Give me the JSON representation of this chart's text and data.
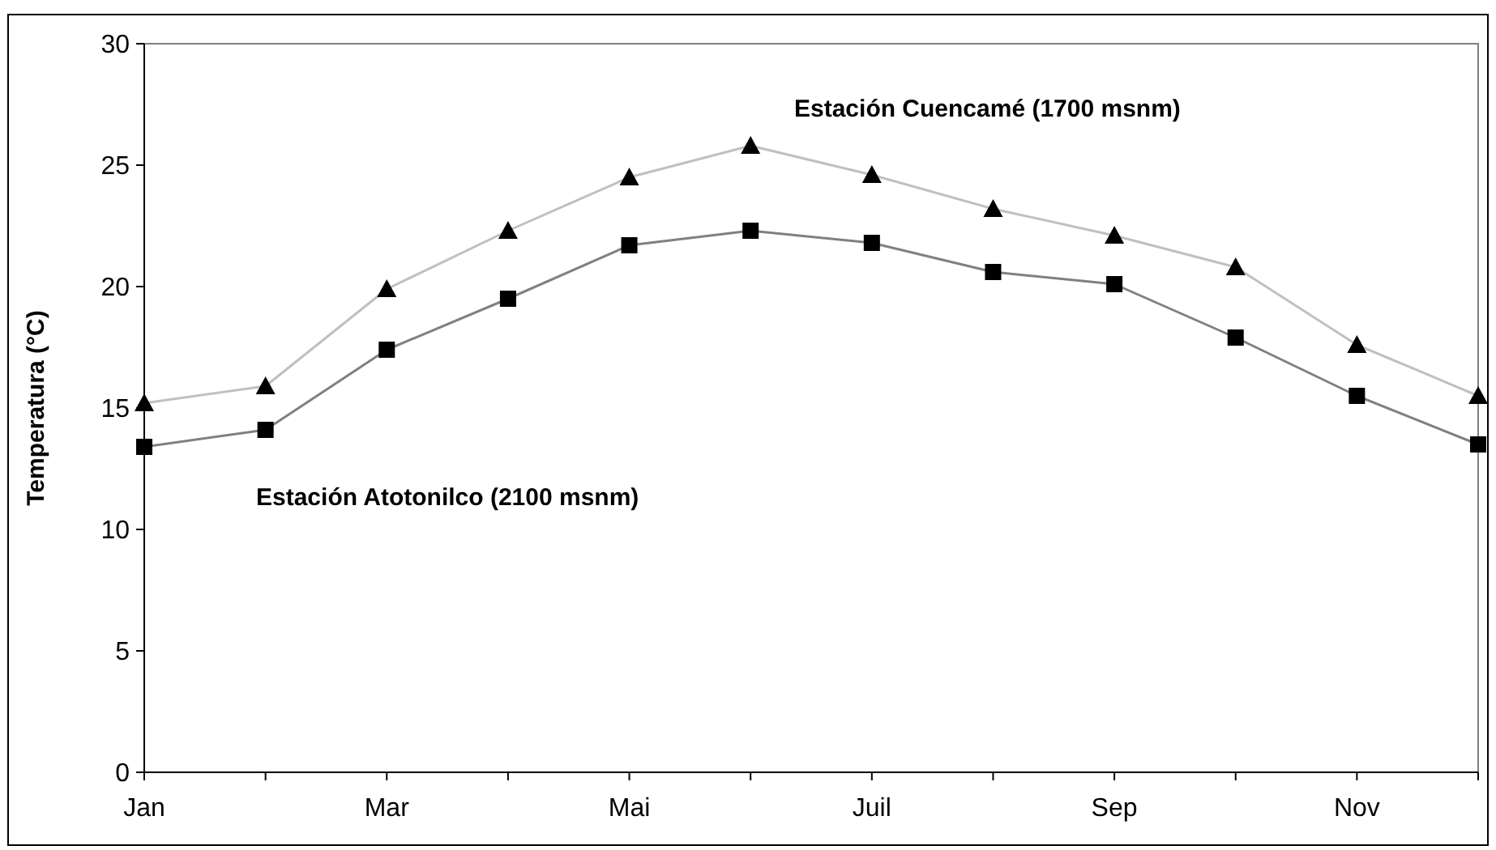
{
  "chart_data": {
    "type": "line",
    "ylabel": "Temperatura (°C)",
    "categories": [
      "Jan",
      null,
      "Mar",
      null,
      "Mai",
      null,
      "Juil",
      null,
      "Sep",
      null,
      "Nov",
      null
    ],
    "ylim": [
      0,
      30
    ],
    "yticks": [
      0,
      5,
      10,
      15,
      20,
      25,
      30
    ],
    "grid": false,
    "line_style": "solid",
    "series": [
      {
        "name": "Estación Cuencamé (1700 msnm)",
        "color": "#c0c0c0",
        "marker": "triangle",
        "values": [
          15.2,
          15.9,
          19.9,
          22.3,
          24.5,
          25.8,
          24.6,
          23.2,
          22.1,
          20.8,
          17.6,
          15.5
        ]
      },
      {
        "name": "Estación Atotonilco (2100 msnm)",
        "color": "#808080",
        "marker": "square",
        "values": [
          13.4,
          14.1,
          17.4,
          19.5,
          21.7,
          22.3,
          21.8,
          20.6,
          20.1,
          17.9,
          15.5,
          13.5
        ]
      }
    ]
  }
}
